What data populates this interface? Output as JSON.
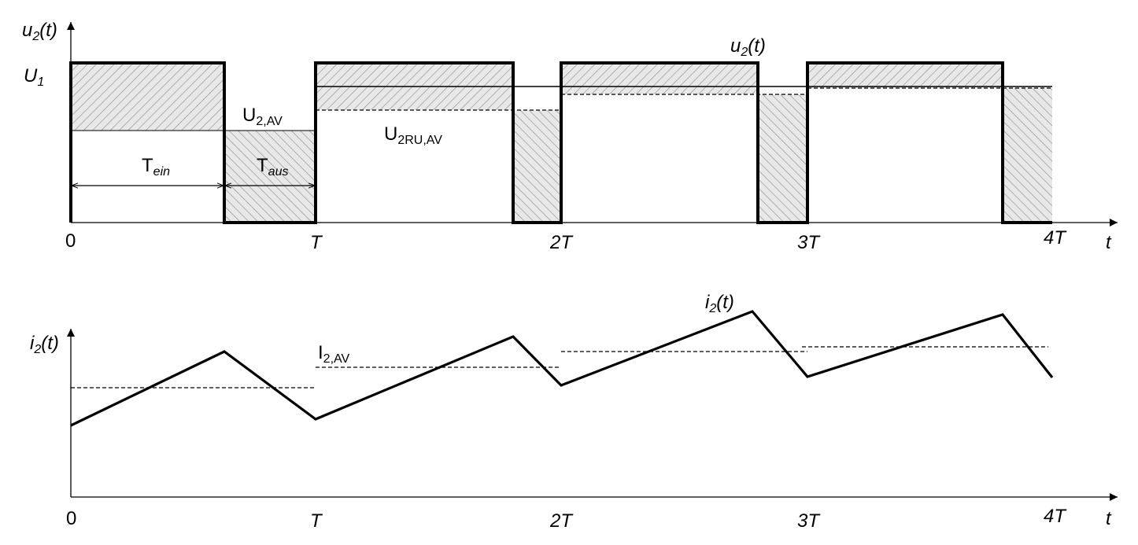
{
  "upper": {
    "y_axis_label": "u",
    "y_axis_sub": "2",
    "y_axis_suffix": "(t)",
    "x_axis_label": "t",
    "ticks": [
      "0",
      "T",
      "2T",
      "3T",
      "4T"
    ],
    "level_label": "U",
    "level_sub": "1",
    "avg_label": "U",
    "avg_sub": "2,AV",
    "ru_avg_label": "U",
    "ru_avg_sub": "2RU,AV",
    "on_time_label": "T",
    "on_time_sub": "ein",
    "off_time_label": "T",
    "off_time_sub": "aus",
    "curve_label": "u",
    "curve_sub": "2",
    "curve_suffix": "(t)"
  },
  "lower": {
    "y_axis_label": "i",
    "y_axis_sub": "2",
    "y_axis_suffix": "(t)",
    "x_axis_label": "t",
    "ticks": [
      "0",
      "T",
      "2T",
      "3T",
      "4T"
    ],
    "avg_label": "I",
    "avg_sub": "2,AV",
    "curve_label": "i",
    "curve_sub": "2",
    "curve_suffix": "(t)"
  },
  "colors": {
    "line": "#000000",
    "hatch": "#9a9a9a",
    "hatch_fill": "#e6e6e6"
  }
}
